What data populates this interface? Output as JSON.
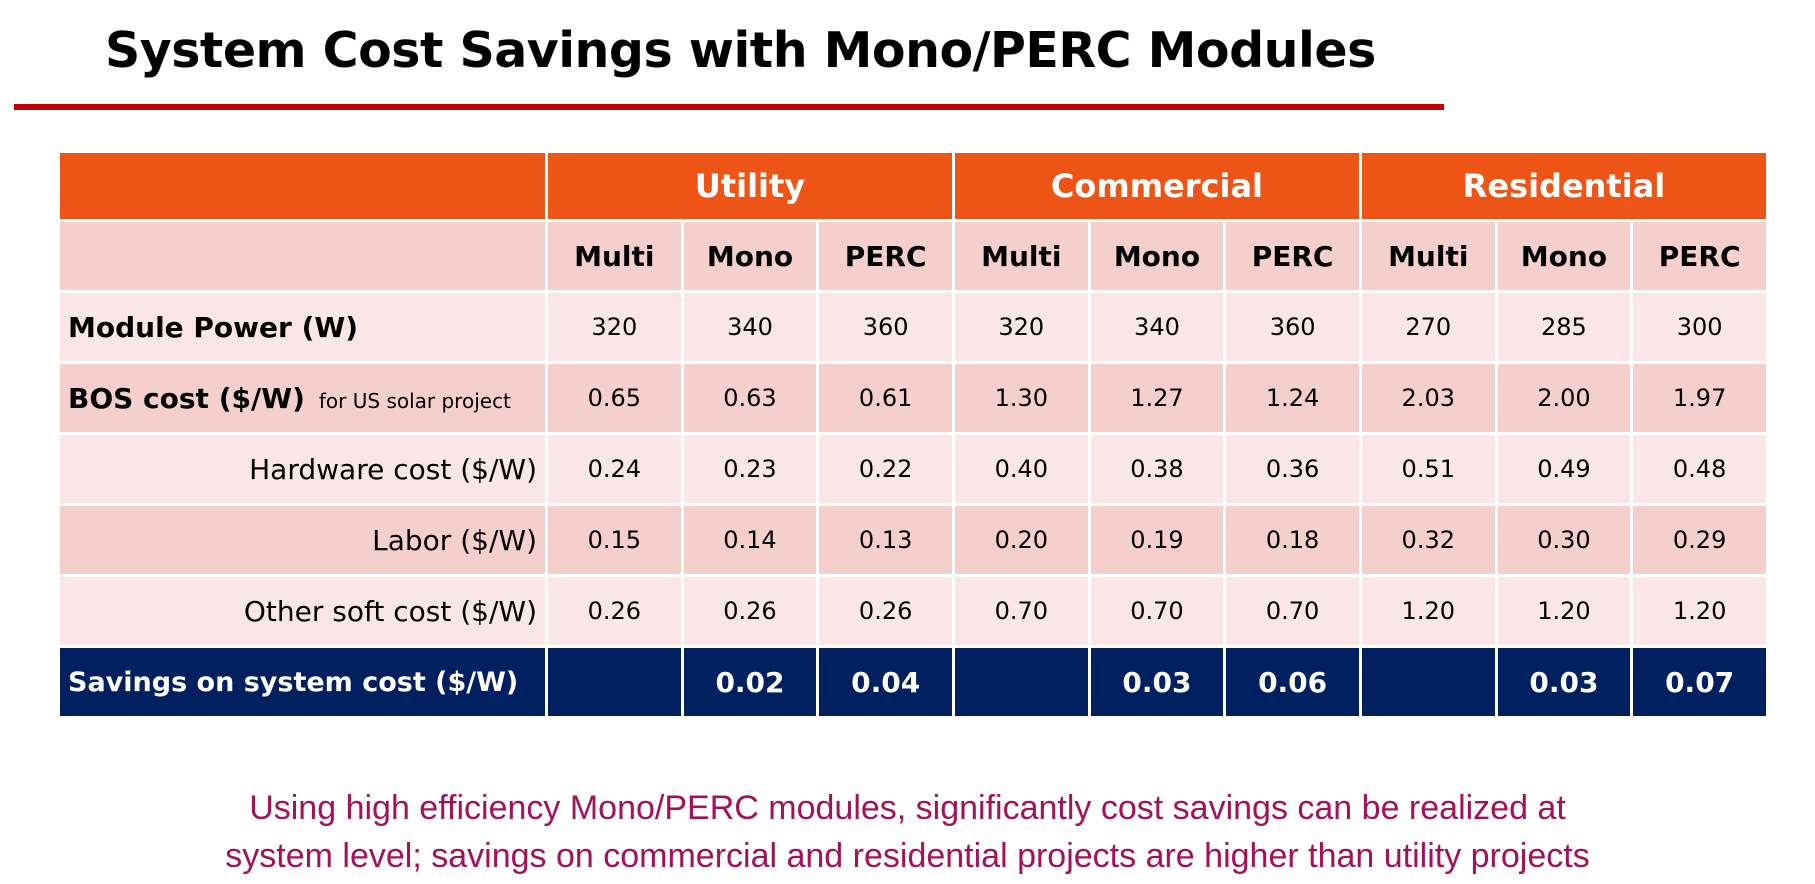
{
  "title": "System Cost Savings with Mono/PERC Modules",
  "colors": {
    "title_rule": "#c00000",
    "group_header_bg": "#ee5416",
    "subheader_bg": "#f5cfcc",
    "row_light": "#fae6e6",
    "row_dark": "#f5cfcc",
    "savings_bg": "#002060",
    "conclusion_text": "#a5105a"
  },
  "table": {
    "groups": [
      "Utility",
      "Commercial",
      "Residential"
    ],
    "subheaders": [
      "Multi",
      "Mono",
      "PERC",
      "Multi",
      "Mono",
      "PERC",
      "Multi",
      "Mono",
      "PERC"
    ],
    "rows": [
      {
        "label": "Module Power (W)",
        "note": "",
        "values": [
          "320",
          "340",
          "360",
          "320",
          "340",
          "360",
          "270",
          "285",
          "300"
        ]
      },
      {
        "label": "BOS cost ($/W)",
        "note": "for US solar project",
        "values": [
          "0.65",
          "0.63",
          "0.61",
          "1.30",
          "1.27",
          "1.24",
          "2.03",
          "2.00",
          "1.97"
        ]
      },
      {
        "label": "Hardware cost ($/W)",
        "note": "",
        "values": [
          "0.24",
          "0.23",
          "0.22",
          "0.40",
          "0.38",
          "0.36",
          "0.51",
          "0.49",
          "0.48"
        ]
      },
      {
        "label": "Labor ($/W)",
        "note": "",
        "values": [
          "0.15",
          "0.14",
          "0.13",
          "0.20",
          "0.19",
          "0.18",
          "0.32",
          "0.30",
          "0.29"
        ]
      },
      {
        "label": "Other soft cost ($/W)",
        "note": "",
        "values": [
          "0.26",
          "0.26",
          "0.26",
          "0.70",
          "0.70",
          "0.70",
          "1.20",
          "1.20",
          "1.20"
        ]
      }
    ],
    "savings": {
      "label": "Savings on system cost ($/W)",
      "values": [
        "",
        "0.02",
        "0.04",
        "",
        "0.03",
        "0.06",
        "",
        "0.03",
        "0.07"
      ]
    }
  },
  "conclusion": {
    "line1": "Using high efficiency Mono/PERC modules, significantly cost savings can be realized at",
    "line2": "system level; savings on commercial and residential projects are higher than utility projects"
  }
}
